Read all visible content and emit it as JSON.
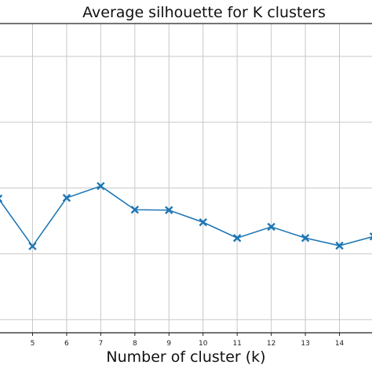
{
  "chart_data": {
    "type": "line",
    "title": "Average silhouette for K clusters",
    "xlabel": "Number of cluster (k)",
    "ylabel": "",
    "x": [
      4,
      5,
      6,
      7,
      8,
      9,
      10,
      11,
      12,
      13,
      14,
      15
    ],
    "series": [
      {
        "values": [
          0.242,
          0.2058,
          0.2425,
          0.2515,
          0.2335,
          0.2332,
          0.224,
          0.212,
          0.2205,
          0.212,
          0.2062,
          0.2132
        ]
      }
    ],
    "x_ticks": [
      "5",
      "6",
      "7",
      "8",
      "9",
      "10",
      "11",
      "12",
      "13",
      "14"
    ],
    "xlim": [
      4,
      15
    ],
    "ylim": [
      0.14,
      0.375
    ],
    "y_gridlines": [
      0.15,
      0.2,
      0.25,
      0.3,
      0.35
    ],
    "grid": true,
    "line_color": "#1f77b4",
    "marker": "x"
  }
}
